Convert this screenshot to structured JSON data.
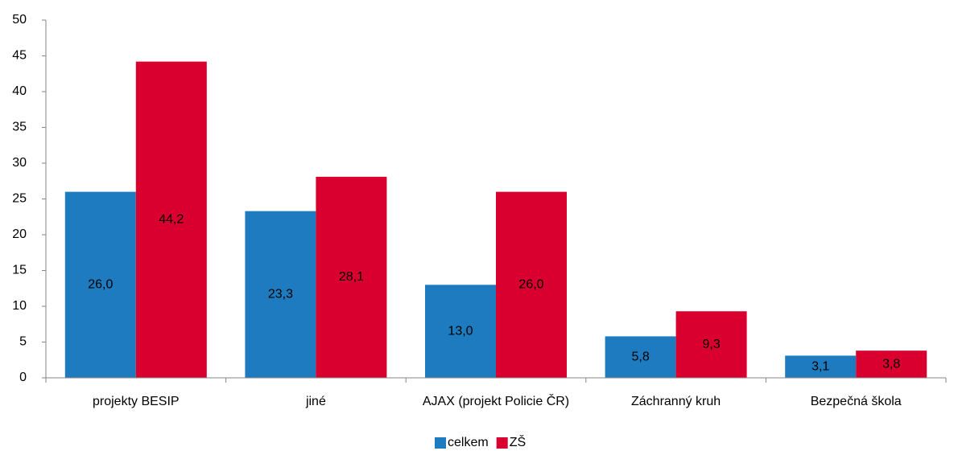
{
  "chart_data": {
    "type": "bar",
    "categories": [
      "projekty BESIP",
      "jiné",
      "AJAX (projekt Policie ČR)",
      "Záchranný kruh",
      "Bezpečná škola"
    ],
    "series": [
      {
        "name": "celkem",
        "color": "#1f7bbf",
        "values": [
          26.0,
          23.3,
          13.0,
          5.8,
          3.1
        ],
        "value_labels": [
          "26,0",
          "23,3",
          "13,0",
          "5,8",
          "3,1"
        ]
      },
      {
        "name": "ZŠ",
        "color": "#d9002f",
        "values": [
          44.2,
          28.1,
          26.0,
          9.3,
          3.8
        ],
        "value_labels": [
          "44,2",
          "28,1",
          "26,0",
          "9,3",
          "3,8"
        ]
      }
    ],
    "ylim": [
      0,
      50
    ],
    "yticks": [
      0,
      5,
      10,
      15,
      20,
      25,
      30,
      35,
      40,
      45,
      50
    ],
    "grid": false,
    "legend": "bottom"
  }
}
